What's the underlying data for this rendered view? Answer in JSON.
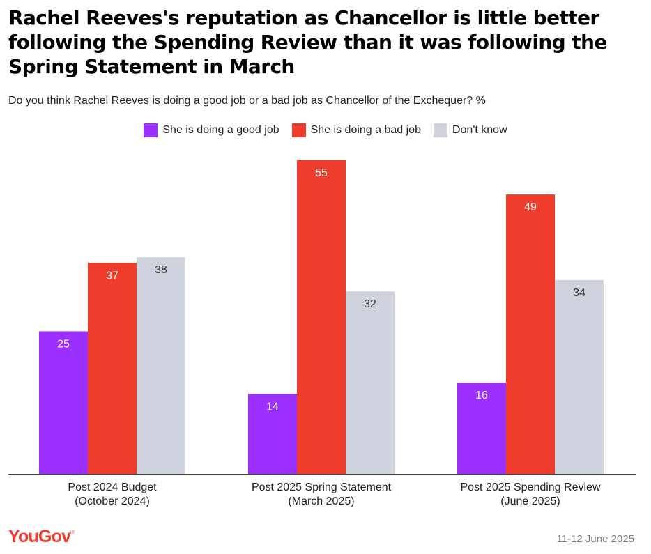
{
  "header": {
    "title": "Rachel Reeves's reputation as Chancellor is little better following the Spending Review than it was following the Spring Statement in March",
    "subtitle": "Do you think Rachel Reeves is doing a good job or a bad job as Chancellor of the Exchequer? %"
  },
  "footer": {
    "logo": "YouGov",
    "date": "11-12 June 2025"
  },
  "chart_data": {
    "type": "bar",
    "categories": [
      [
        "Post 2024 Budget",
        "(October 2024)"
      ],
      [
        "Post 2025 Spring Statement",
        "(March 2025)"
      ],
      [
        "Post 2025 Spending Review",
        "(June 2025)"
      ]
    ],
    "series": [
      {
        "name": "She is doing a good job",
        "values": [
          25,
          14,
          16
        ],
        "color": "#9b30ff",
        "label_color": "#ffffff"
      },
      {
        "name": "She is doing a bad job",
        "values": [
          37,
          55,
          49
        ],
        "color": "#f03c2c",
        "label_color": "#ffffff"
      },
      {
        "name": "Don't know",
        "values": [
          38,
          32,
          34
        ],
        "color": "#cfd3de",
        "label_color": "#333333"
      }
    ],
    "ylim": [
      0,
      55
    ],
    "grid": false,
    "legend_position": "top"
  }
}
